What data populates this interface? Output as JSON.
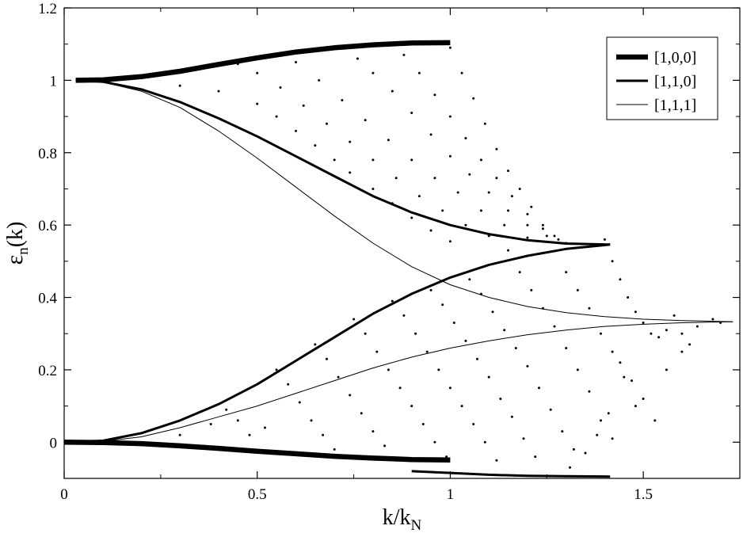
{
  "chart_data": {
    "type": "line",
    "xlabel": "k/k",
    "xlabel_subscript": "N",
    "ylabel": "ε",
    "ylabel_subscript": "n",
    "ylabel_suffix": "(k)",
    "xlim": [
      0,
      1.75
    ],
    "ylim": [
      -0.1,
      1.2
    ],
    "x_ticks": [
      0,
      0.5,
      1,
      1.5
    ],
    "x_tick_labels": [
      "0",
      "0.5",
      "1",
      "1.5"
    ],
    "y_ticks": [
      0,
      0.2,
      0.4,
      0.6,
      0.8,
      1.0,
      1.2
    ],
    "y_tick_labels": [
      "0",
      "0.2",
      "0.4",
      "0.6",
      "0.8",
      "1",
      "1.2"
    ],
    "grid": false,
    "legend_position": "top-right",
    "series": [
      {
        "name": "[1,0,0]",
        "line_width": "thick",
        "points": [
          [
            0.03,
            1.0
          ],
          [
            0.1,
            1.001
          ],
          [
            0.2,
            1.01
          ],
          [
            0.3,
            1.025
          ],
          [
            0.4,
            1.044
          ],
          [
            0.5,
            1.062
          ],
          [
            0.6,
            1.078
          ],
          [
            0.7,
            1.09
          ],
          [
            0.8,
            1.098
          ],
          [
            0.9,
            1.103
          ],
          [
            1.0,
            1.104
          ]
        ]
      },
      {
        "name": "[1,0,0]",
        "line_width": "thick",
        "points": [
          [
            0.0,
            0.0
          ],
          [
            0.1,
            -0.001
          ],
          [
            0.2,
            -0.004
          ],
          [
            0.3,
            -0.01
          ],
          [
            0.4,
            -0.017
          ],
          [
            0.5,
            -0.025
          ],
          [
            0.6,
            -0.032
          ],
          [
            0.7,
            -0.039
          ],
          [
            0.8,
            -0.044
          ],
          [
            0.9,
            -0.048
          ],
          [
            1.0,
            -0.049
          ]
        ]
      },
      {
        "name": "[1,1,0]",
        "line_width": "medium",
        "points": [
          [
            0.03,
            1.0
          ],
          [
            0.1,
            0.996
          ],
          [
            0.2,
            0.975
          ],
          [
            0.3,
            0.94
          ],
          [
            0.4,
            0.895
          ],
          [
            0.5,
            0.845
          ],
          [
            0.6,
            0.79
          ],
          [
            0.7,
            0.735
          ],
          [
            0.8,
            0.68
          ],
          [
            0.9,
            0.635
          ],
          [
            1.0,
            0.6
          ],
          [
            1.1,
            0.575
          ],
          [
            1.2,
            0.558
          ],
          [
            1.3,
            0.549
          ],
          [
            1.414,
            0.546
          ]
        ]
      },
      {
        "name": "[1,1,0]",
        "line_width": "medium",
        "points": [
          [
            0.0,
            0.0
          ],
          [
            0.1,
            0.004
          ],
          [
            0.2,
            0.025
          ],
          [
            0.3,
            0.06
          ],
          [
            0.4,
            0.105
          ],
          [
            0.5,
            0.16
          ],
          [
            0.6,
            0.225
          ],
          [
            0.7,
            0.29
          ],
          [
            0.8,
            0.355
          ],
          [
            0.9,
            0.41
          ],
          [
            1.0,
            0.455
          ],
          [
            1.1,
            0.49
          ],
          [
            1.2,
            0.515
          ],
          [
            1.3,
            0.534
          ],
          [
            1.414,
            0.546
          ]
        ]
      },
      {
        "name": "[1,1,0]",
        "line_width": "medium",
        "points": [
          [
            0.9,
            -0.08
          ],
          [
            1.0,
            -0.085
          ],
          [
            1.1,
            -0.09
          ],
          [
            1.2,
            -0.093
          ],
          [
            1.3,
            -0.094
          ],
          [
            1.414,
            -0.095
          ]
        ]
      },
      {
        "name": "[1,1,1]",
        "line_width": "thin",
        "points": [
          [
            0.03,
            1.0
          ],
          [
            0.1,
            0.995
          ],
          [
            0.2,
            0.97
          ],
          [
            0.3,
            0.925
          ],
          [
            0.4,
            0.86
          ],
          [
            0.5,
            0.785
          ],
          [
            0.6,
            0.705
          ],
          [
            0.7,
            0.625
          ],
          [
            0.8,
            0.55
          ],
          [
            0.9,
            0.485
          ],
          [
            1.0,
            0.435
          ],
          [
            1.1,
            0.4
          ],
          [
            1.2,
            0.375
          ],
          [
            1.3,
            0.358
          ],
          [
            1.4,
            0.347
          ],
          [
            1.5,
            0.34
          ],
          [
            1.6,
            0.336
          ],
          [
            1.732,
            0.333
          ]
        ]
      },
      {
        "name": "[1,1,1]",
        "line_width": "thin",
        "points": [
          [
            0.0,
            0.0
          ],
          [
            0.1,
            0.002
          ],
          [
            0.2,
            0.015
          ],
          [
            0.3,
            0.04
          ],
          [
            0.4,
            0.07
          ],
          [
            0.5,
            0.1
          ],
          [
            0.6,
            0.135
          ],
          [
            0.7,
            0.17
          ],
          [
            0.8,
            0.205
          ],
          [
            0.9,
            0.235
          ],
          [
            1.0,
            0.26
          ],
          [
            1.1,
            0.28
          ],
          [
            1.2,
            0.297
          ],
          [
            1.3,
            0.31
          ],
          [
            1.4,
            0.32
          ],
          [
            1.5,
            0.326
          ],
          [
            1.6,
            0.33
          ],
          [
            1.732,
            0.333
          ]
        ]
      }
    ],
    "scatter_points": [
      [
        0.3,
        0.985
      ],
      [
        0.4,
        0.97
      ],
      [
        0.5,
        0.935
      ],
      [
        0.55,
        0.9
      ],
      [
        0.6,
        0.86
      ],
      [
        0.65,
        0.82
      ],
      [
        0.7,
        0.78
      ],
      [
        0.74,
        0.745
      ],
      [
        0.8,
        0.7
      ],
      [
        0.85,
        0.66
      ],
      [
        0.9,
        0.62
      ],
      [
        0.95,
        0.585
      ],
      [
        1.0,
        0.555
      ],
      [
        0.45,
        1.045
      ],
      [
        0.5,
        1.02
      ],
      [
        0.56,
        0.98
      ],
      [
        0.62,
        0.93
      ],
      [
        0.68,
        0.88
      ],
      [
        0.74,
        0.83
      ],
      [
        0.8,
        0.78
      ],
      [
        0.86,
        0.73
      ],
      [
        0.92,
        0.68
      ],
      [
        0.98,
        0.64
      ],
      [
        1.04,
        0.6
      ],
      [
        1.1,
        0.57
      ],
      [
        0.6,
        1.05
      ],
      [
        0.66,
        1.0
      ],
      [
        0.72,
        0.945
      ],
      [
        0.78,
        0.89
      ],
      [
        0.84,
        0.835
      ],
      [
        0.9,
        0.78
      ],
      [
        0.96,
        0.73
      ],
      [
        1.02,
        0.69
      ],
      [
        1.08,
        0.64
      ],
      [
        1.14,
        0.6
      ],
      [
        1.2,
        0.565
      ],
      [
        0.76,
        1.06
      ],
      [
        0.8,
        1.02
      ],
      [
        0.85,
        0.97
      ],
      [
        0.9,
        0.91
      ],
      [
        0.95,
        0.85
      ],
      [
        1.0,
        0.79
      ],
      [
        1.05,
        0.74
      ],
      [
        1.1,
        0.69
      ],
      [
        1.15,
        0.64
      ],
      [
        1.2,
        0.6
      ],
      [
        1.25,
        0.57
      ],
      [
        1.3,
        0.55
      ],
      [
        0.88,
        1.07
      ],
      [
        0.92,
        1.02
      ],
      [
        0.96,
        0.96
      ],
      [
        1.0,
        0.9
      ],
      [
        1.04,
        0.84
      ],
      [
        1.08,
        0.78
      ],
      [
        1.12,
        0.73
      ],
      [
        1.16,
        0.68
      ],
      [
        1.2,
        0.63
      ],
      [
        1.24,
        0.59
      ],
      [
        1.28,
        0.56
      ],
      [
        1.0,
        1.09
      ],
      [
        1.03,
        1.02
      ],
      [
        1.06,
        0.95
      ],
      [
        1.09,
        0.88
      ],
      [
        1.12,
        0.81
      ],
      [
        1.15,
        0.75
      ],
      [
        1.18,
        0.7
      ],
      [
        1.21,
        0.65
      ],
      [
        1.24,
        0.6
      ],
      [
        1.27,
        0.57
      ],
      [
        1.4,
        0.56
      ],
      [
        1.42,
        0.5
      ],
      [
        1.44,
        0.45
      ],
      [
        1.46,
        0.4
      ],
      [
        1.48,
        0.36
      ],
      [
        1.5,
        0.33
      ],
      [
        1.52,
        0.3
      ],
      [
        1.54,
        0.29
      ],
      [
        1.56,
        0.31
      ],
      [
        1.58,
        0.35
      ],
      [
        1.6,
        0.3
      ],
      [
        1.62,
        0.27
      ],
      [
        1.64,
        0.32
      ],
      [
        1.68,
        0.34
      ],
      [
        1.7,
        0.33
      ],
      [
        1.44,
        0.22
      ],
      [
        1.47,
        0.17
      ],
      [
        1.5,
        0.12
      ],
      [
        1.53,
        0.06
      ],
      [
        1.56,
        0.2
      ],
      [
        1.6,
        0.25
      ],
      [
        1.3,
        0.47
      ],
      [
        1.33,
        0.42
      ],
      [
        1.36,
        0.37
      ],
      [
        1.39,
        0.3
      ],
      [
        1.42,
        0.25
      ],
      [
        1.45,
        0.18
      ],
      [
        1.48,
        0.1
      ],
      [
        1.41,
        0.08
      ],
      [
        1.38,
        0.02
      ],
      [
        1.35,
        -0.03
      ],
      [
        1.31,
        -0.07
      ],
      [
        1.15,
        0.53
      ],
      [
        1.18,
        0.47
      ],
      [
        1.21,
        0.42
      ],
      [
        1.24,
        0.37
      ],
      [
        1.27,
        0.32
      ],
      [
        1.3,
        0.26
      ],
      [
        1.33,
        0.2
      ],
      [
        1.36,
        0.14
      ],
      [
        1.39,
        0.06
      ],
      [
        1.42,
        0.01
      ],
      [
        1.05,
        0.45
      ],
      [
        1.08,
        0.41
      ],
      [
        1.11,
        0.36
      ],
      [
        1.14,
        0.31
      ],
      [
        1.17,
        0.26
      ],
      [
        1.2,
        0.21
      ],
      [
        1.23,
        0.15
      ],
      [
        1.26,
        0.09
      ],
      [
        1.29,
        0.03
      ],
      [
        1.32,
        -0.02
      ],
      [
        0.95,
        0.42
      ],
      [
        0.98,
        0.38
      ],
      [
        1.01,
        0.33
      ],
      [
        1.04,
        0.28
      ],
      [
        1.07,
        0.23
      ],
      [
        1.1,
        0.18
      ],
      [
        1.13,
        0.12
      ],
      [
        1.16,
        0.07
      ],
      [
        1.19,
        0.01
      ],
      [
        1.22,
        -0.04
      ],
      [
        0.85,
        0.39
      ],
      [
        0.88,
        0.35
      ],
      [
        0.91,
        0.3
      ],
      [
        0.94,
        0.25
      ],
      [
        0.97,
        0.2
      ],
      [
        1.0,
        0.15
      ],
      [
        1.03,
        0.1
      ],
      [
        1.06,
        0.05
      ],
      [
        1.09,
        0.0
      ],
      [
        1.12,
        -0.05
      ],
      [
        0.75,
        0.34
      ],
      [
        0.78,
        0.3
      ],
      [
        0.81,
        0.25
      ],
      [
        0.84,
        0.2
      ],
      [
        0.87,
        0.15
      ],
      [
        0.9,
        0.1
      ],
      [
        0.93,
        0.05
      ],
      [
        0.96,
        0.0
      ],
      [
        0.99,
        -0.04
      ],
      [
        0.65,
        0.27
      ],
      [
        0.68,
        0.23
      ],
      [
        0.71,
        0.18
      ],
      [
        0.74,
        0.13
      ],
      [
        0.77,
        0.08
      ],
      [
        0.8,
        0.03
      ],
      [
        0.83,
        -0.01
      ],
      [
        0.86,
        -0.05
      ],
      [
        0.55,
        0.2
      ],
      [
        0.58,
        0.16
      ],
      [
        0.61,
        0.11
      ],
      [
        0.64,
        0.06
      ],
      [
        0.67,
        0.02
      ],
      [
        0.7,
        -0.02
      ],
      [
        0.42,
        0.09
      ],
      [
        0.45,
        0.06
      ],
      [
        0.48,
        0.02
      ],
      [
        0.52,
        0.04
      ],
      [
        0.38,
        0.05
      ],
      [
        0.3,
        0.02
      ]
    ]
  },
  "legend": {
    "items": [
      {
        "label": "[1,0,0]",
        "width": "thick"
      },
      {
        "label": "[1,1,0]",
        "width": "medium"
      },
      {
        "label": "[1,1,1]",
        "width": "thin"
      }
    ]
  }
}
